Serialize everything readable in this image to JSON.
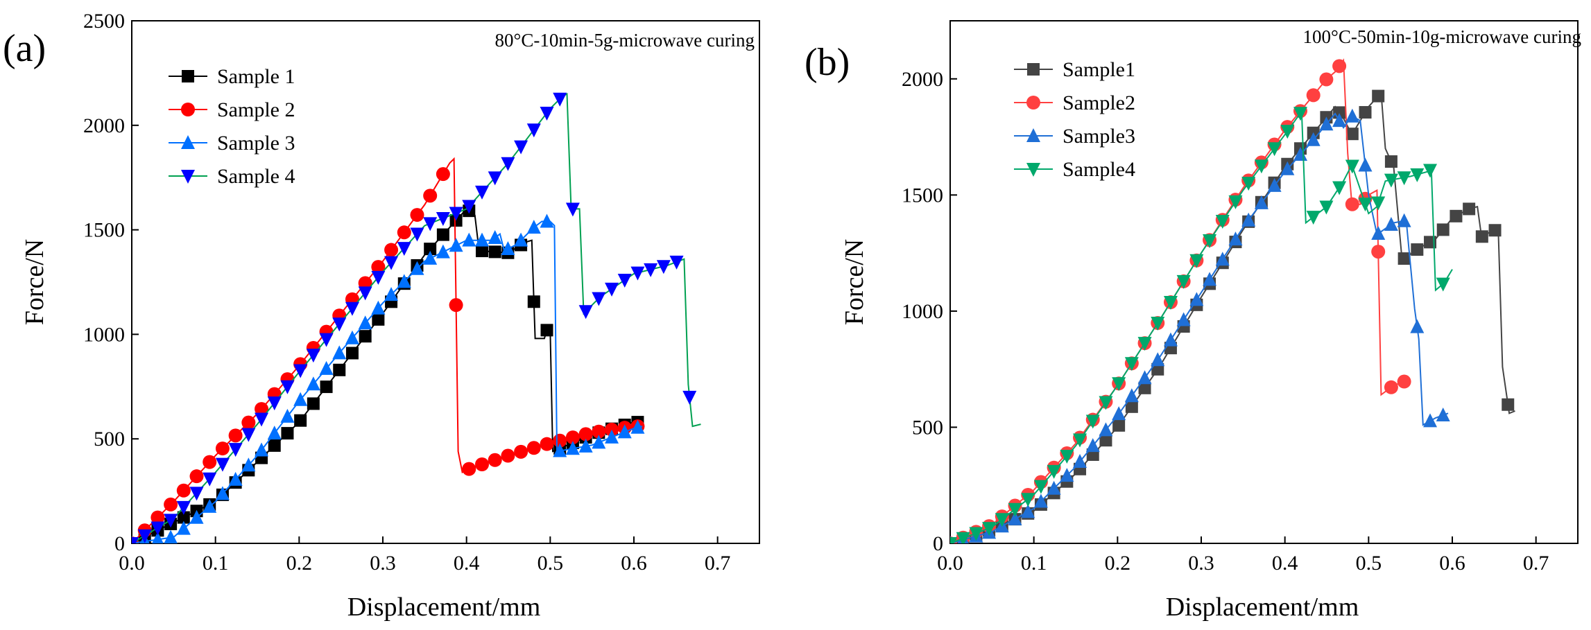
{
  "chart_data": [
    {
      "type": "line",
      "panel_label": "(a)",
      "annotation": "80°C-10min-5g-microwave curing",
      "xlabel": "Displacement/mm",
      "ylabel": "Force/N",
      "xlim": [
        0,
        0.75
      ],
      "ylim": [
        0,
        2500
      ],
      "xticks": [
        "0.0",
        "0.1",
        "0.2",
        "0.3",
        "0.4",
        "0.5",
        "0.6",
        "0.7"
      ],
      "yticks": [
        "0",
        "500",
        "1000",
        "1500",
        "2000",
        "2500"
      ],
      "legend_position": "top-left",
      "series": [
        {
          "name": "Sample 1",
          "color": "#000000",
          "marker": "square",
          "points": [
            [
              0,
              0
            ],
            [
              0.1,
              200
            ],
            [
              0.2,
              580
            ],
            [
              0.3,
              1100
            ],
            [
              0.35,
              1380
            ],
            [
              0.4,
              1600
            ],
            [
              0.41,
              1570
            ],
            [
              0.415,
              1400
            ],
            [
              0.45,
              1390
            ],
            [
              0.47,
              1440
            ],
            [
              0.478,
              1450
            ],
            [
              0.482,
              980
            ],
            [
              0.487,
              980
            ],
            [
              0.493,
              980
            ],
            [
              0.496,
              1020
            ],
            [
              0.5,
              1020
            ],
            [
              0.503,
              440
            ],
            [
              0.55,
              520
            ],
            [
              0.6,
              580
            ],
            [
              0.61,
              580
            ]
          ]
        },
        {
          "name": "Sample 2",
          "color": "#ff0000",
          "marker": "circle",
          "points": [
            [
              0,
              0
            ],
            [
              0.05,
              200
            ],
            [
              0.1,
              420
            ],
            [
              0.15,
              620
            ],
            [
              0.2,
              850
            ],
            [
              0.25,
              1100
            ],
            [
              0.3,
              1350
            ],
            [
              0.35,
              1620
            ],
            [
              0.38,
              1820
            ],
            [
              0.385,
              1840
            ],
            [
              0.39,
              440
            ],
            [
              0.395,
              340
            ],
            [
              0.405,
              360
            ],
            [
              0.45,
              420
            ],
            [
              0.5,
              480
            ],
            [
              0.55,
              530
            ],
            [
              0.6,
              560
            ],
            [
              0.61,
              560
            ]
          ]
        },
        {
          "name": "Sample 3",
          "color": "#0070ff",
          "marker": "triangle-up",
          "points": [
            [
              0,
              0
            ],
            [
              0.05,
              30
            ],
            [
              0.1,
              200
            ],
            [
              0.15,
              420
            ],
            [
              0.2,
              680
            ],
            [
              0.25,
              920
            ],
            [
              0.3,
              1150
            ],
            [
              0.35,
              1350
            ],
            [
              0.4,
              1450
            ],
            [
              0.43,
              1450
            ],
            [
              0.44,
              1480
            ],
            [
              0.445,
              1400
            ],
            [
              0.46,
              1430
            ],
            [
              0.48,
              1510
            ],
            [
              0.49,
              1540
            ],
            [
              0.5,
              1540
            ],
            [
              0.505,
              1520
            ],
            [
              0.508,
              440
            ],
            [
              0.55,
              470
            ],
            [
              0.6,
              550
            ],
            [
              0.61,
              560
            ]
          ]
        },
        {
          "name": "Sample 4",
          "color": "#0000ff",
          "marker": "triangle-down",
          "line_color": "#00a050",
          "points": [
            [
              0,
              0
            ],
            [
              0.05,
              120
            ],
            [
              0.1,
              340
            ],
            [
              0.15,
              570
            ],
            [
              0.2,
              820
            ],
            [
              0.25,
              1060
            ],
            [
              0.3,
              1300
            ],
            [
              0.35,
              1520
            ],
            [
              0.4,
              1600
            ],
            [
              0.45,
              1820
            ],
            [
              0.5,
              2080
            ],
            [
              0.515,
              2140
            ],
            [
              0.52,
              2150
            ],
            [
              0.525,
              1600
            ],
            [
              0.535,
              1600
            ],
            [
              0.54,
              1100
            ],
            [
              0.56,
              1180
            ],
            [
              0.6,
              1290
            ],
            [
              0.64,
              1330
            ],
            [
              0.66,
              1360
            ],
            [
              0.665,
              760
            ],
            [
              0.67,
              560
            ],
            [
              0.68,
              570
            ]
          ]
        }
      ]
    },
    {
      "type": "line",
      "panel_label": "(b)",
      "annotation": "100°C-50min-10g-microwave curing",
      "xlabel": "Displacement/mm",
      "ylabel": "Force/N",
      "xlim": [
        0,
        0.75
      ],
      "ylim": [
        0,
        2250
      ],
      "xticks": [
        "0.0",
        "0.1",
        "0.2",
        "0.3",
        "0.4",
        "0.5",
        "0.6",
        "0.7"
      ],
      "yticks": [
        "0",
        "500",
        "1000",
        "1500",
        "2000"
      ],
      "legend_position": "top-left",
      "series": [
        {
          "name": "Sample1",
          "color": "#444444",
          "marker": "square",
          "points": [
            [
              0,
              0
            ],
            [
              0.05,
              60
            ],
            [
              0.1,
              140
            ],
            [
              0.15,
              300
            ],
            [
              0.2,
              500
            ],
            [
              0.25,
              760
            ],
            [
              0.3,
              1060
            ],
            [
              0.35,
              1350
            ],
            [
              0.4,
              1620
            ],
            [
              0.43,
              1750
            ],
            [
              0.46,
              1880
            ],
            [
              0.47,
              1830
            ],
            [
              0.48,
              1760
            ],
            [
              0.49,
              1820
            ],
            [
              0.5,
              1880
            ],
            [
              0.51,
              1920
            ],
            [
              0.515,
              1940
            ],
            [
              0.52,
              1700
            ],
            [
              0.53,
              1620
            ],
            [
              0.54,
              1220
            ],
            [
              0.56,
              1270
            ],
            [
              0.58,
              1310
            ],
            [
              0.6,
              1400
            ],
            [
              0.62,
              1440
            ],
            [
              0.63,
              1450
            ],
            [
              0.635,
              1320
            ],
            [
              0.65,
              1350
            ],
            [
              0.655,
              1340
            ],
            [
              0.66,
              760
            ],
            [
              0.668,
              560
            ],
            [
              0.675,
              570
            ]
          ]
        },
        {
          "name": "Sample2",
          "color": "#ff4040",
          "marker": "circle",
          "points": [
            [
              0,
              0
            ],
            [
              0.05,
              80
            ],
            [
              0.1,
              230
            ],
            [
              0.15,
              430
            ],
            [
              0.2,
              680
            ],
            [
              0.25,
              960
            ],
            [
              0.3,
              1250
            ],
            [
              0.35,
              1530
            ],
            [
              0.4,
              1780
            ],
            [
              0.45,
              2000
            ],
            [
              0.46,
              2030
            ],
            [
              0.47,
              2080
            ],
            [
              0.475,
              1680
            ],
            [
              0.48,
              1460
            ],
            [
              0.49,
              1460
            ],
            [
              0.5,
              1500
            ],
            [
              0.51,
              1520
            ],
            [
              0.515,
              640
            ],
            [
              0.53,
              680
            ],
            [
              0.545,
              700
            ]
          ]
        },
        {
          "name": "Sample3",
          "color": "#1f6fd6",
          "marker": "triangle-up",
          "points": [
            [
              0,
              0
            ],
            [
              0.05,
              50
            ],
            [
              0.1,
              150
            ],
            [
              0.15,
              330
            ],
            [
              0.2,
              550
            ],
            [
              0.25,
              800
            ],
            [
              0.3,
              1080
            ],
            [
              0.35,
              1360
            ],
            [
              0.4,
              1600
            ],
            [
              0.43,
              1720
            ],
            [
              0.46,
              1850
            ],
            [
              0.47,
              1790
            ],
            [
              0.48,
              1840
            ],
            [
              0.49,
              1820
            ],
            [
              0.5,
              1500
            ],
            [
              0.51,
              1330
            ],
            [
              0.53,
              1380
            ],
            [
              0.545,
              1390
            ],
            [
              0.555,
              1010
            ],
            [
              0.56,
              880
            ],
            [
              0.565,
              510
            ],
            [
              0.58,
              540
            ],
            [
              0.595,
              560
            ]
          ]
        },
        {
          "name": "Sample4",
          "color": "#00a86b",
          "marker": "triangle-down",
          "points": [
            [
              0,
              0
            ],
            [
              0.05,
              70
            ],
            [
              0.1,
              210
            ],
            [
              0.15,
              420
            ],
            [
              0.2,
              680
            ],
            [
              0.25,
              960
            ],
            [
              0.3,
              1250
            ],
            [
              0.35,
              1520
            ],
            [
              0.4,
              1760
            ],
            [
              0.42,
              1860
            ],
            [
              0.425,
              1380
            ],
            [
              0.45,
              1450
            ],
            [
              0.47,
              1560
            ],
            [
              0.48,
              1630
            ],
            [
              0.5,
              1420
            ],
            [
              0.51,
              1450
            ],
            [
              0.52,
              1560
            ],
            [
              0.55,
              1580
            ],
            [
              0.57,
              1600
            ],
            [
              0.575,
              1610
            ],
            [
              0.58,
              1090
            ],
            [
              0.59,
              1120
            ],
            [
              0.6,
              1180
            ]
          ]
        }
      ]
    }
  ]
}
